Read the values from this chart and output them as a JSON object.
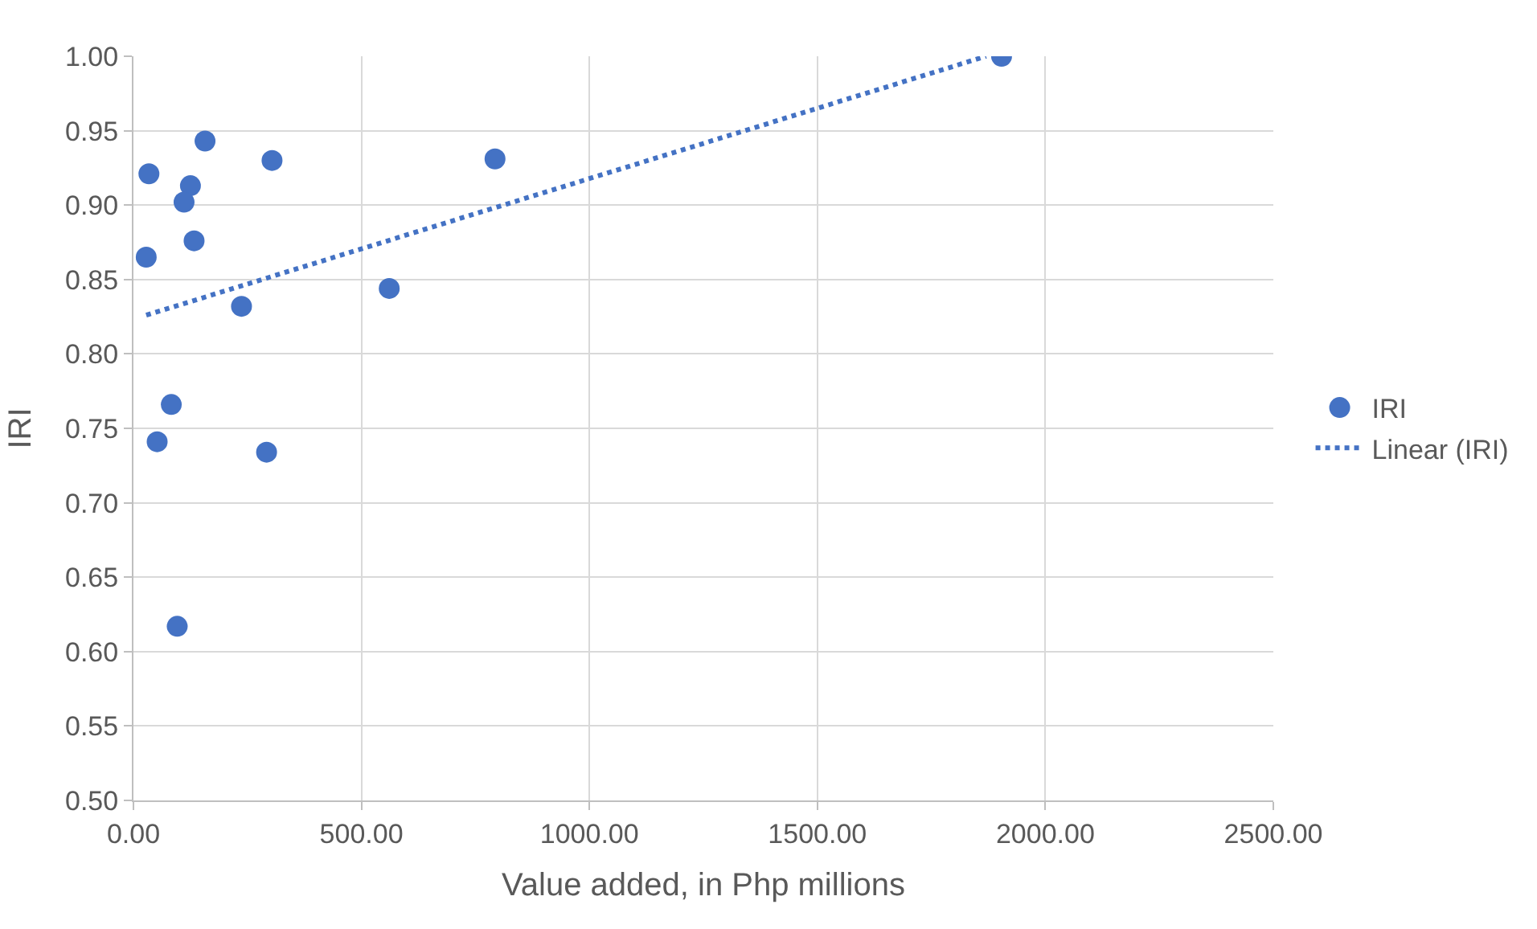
{
  "chart_data": {
    "type": "scatter",
    "xlabel": "Value added, in Php millions",
    "ylabel": "IRI",
    "xlim": [
      0,
      2500
    ],
    "xticks": [
      {
        "value": 0,
        "label": "0.00"
      },
      {
        "value": 500,
        "label": "500.00"
      },
      {
        "value": 1000,
        "label": "1000.00"
      },
      {
        "value": 1500,
        "label": "1500.00"
      },
      {
        "value": 2000,
        "label": "2000.00"
      },
      {
        "value": 2500,
        "label": "2500.00"
      }
    ],
    "ylim": [
      0.5,
      1.0
    ],
    "yticks": [
      {
        "value": 0.5,
        "label": "0.50"
      },
      {
        "value": 0.55,
        "label": "0.55"
      },
      {
        "value": 0.6,
        "label": "0.60"
      },
      {
        "value": 0.65,
        "label": "0.65"
      },
      {
        "value": 0.7,
        "label": "0.70"
      },
      {
        "value": 0.75,
        "label": "0.75"
      },
      {
        "value": 0.8,
        "label": "0.80"
      },
      {
        "value": 0.85,
        "label": "0.85"
      },
      {
        "value": 0.9,
        "label": "0.90"
      },
      {
        "value": 0.95,
        "label": "0.95"
      },
      {
        "value": 1.0,
        "label": "1.00"
      }
    ],
    "grid": true,
    "legend": "right",
    "series": [
      {
        "name": "IRI",
        "marker": "circle",
        "color": "#4472c4",
        "x": [
          1904,
          157,
          304,
          793,
          34,
          125,
          111,
          133,
          28,
          561,
          237,
          83,
          52,
          292,
          96
        ],
        "values": [
          1.0,
          0.943,
          0.93,
          0.931,
          0.921,
          0.913,
          0.902,
          0.876,
          0.865,
          0.844,
          0.832,
          0.766,
          0.741,
          0.734,
          0.617
        ]
      },
      {
        "name": "Linear (IRI)",
        "type": "line",
        "marker": "none",
        "line_style": "dotted",
        "color": "#4472c4",
        "x": [
          28,
          1870
        ],
        "values": [
          0.826,
          1.0
        ]
      }
    ]
  }
}
